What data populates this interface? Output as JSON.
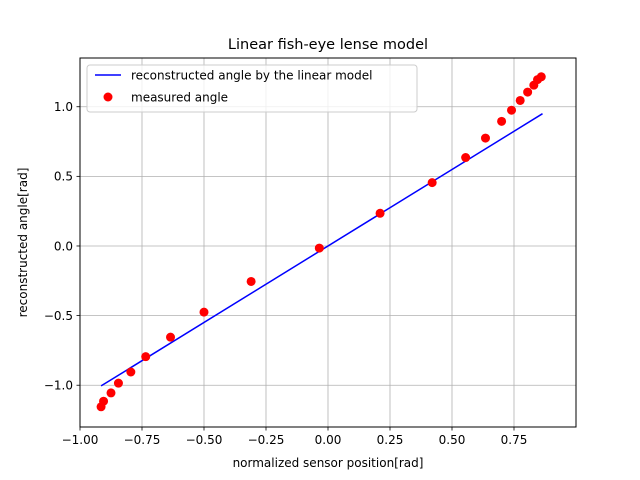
{
  "chart_data": {
    "type": "scatter",
    "title": "Linear fish-eye lense model",
    "xlabel": "normalized sensor position[rad]",
    "ylabel": "reconstructed angle[rad]",
    "xlim": [
      -1.0,
      1.0
    ],
    "ylim": [
      -1.3,
      1.35
    ],
    "xticks": [
      -1.0,
      -0.75,
      -0.5,
      -0.25,
      0.0,
      0.25,
      0.5,
      0.75
    ],
    "xtick_labels": [
      "−1.00",
      "−0.75",
      "−0.50",
      "−0.25",
      "0.00",
      "0.25",
      "0.50",
      "0.75"
    ],
    "yticks": [
      -1.0,
      -0.5,
      0.0,
      0.5,
      1.0
    ],
    "ytick_labels": [
      "−1.0",
      "−0.5",
      "0.0",
      "0.5",
      "1.0"
    ],
    "grid": true,
    "legend_position": "top-left",
    "series": [
      {
        "name": "reconstructed angle by the linear model",
        "kind": "line",
        "color": "#0000ff",
        "x": [
          -0.915,
          0.865
        ],
        "y": [
          -1.005,
          0.95
        ]
      },
      {
        "name": "measured angle",
        "kind": "scatter",
        "color": "#ff0000",
        "x": [
          -0.915,
          -0.905,
          -0.875,
          -0.845,
          -0.795,
          -0.735,
          -0.635,
          -0.5,
          -0.31,
          -0.035,
          0.21,
          0.42,
          0.555,
          0.635,
          0.7,
          0.74,
          0.775,
          0.805,
          0.83,
          0.845,
          0.86
        ],
        "y": [
          -1.155,
          -1.115,
          -1.055,
          -0.985,
          -0.905,
          -0.795,
          -0.655,
          -0.475,
          -0.255,
          -0.015,
          0.235,
          0.455,
          0.635,
          0.775,
          0.895,
          0.975,
          1.045,
          1.105,
          1.155,
          1.195,
          1.215
        ]
      }
    ]
  }
}
